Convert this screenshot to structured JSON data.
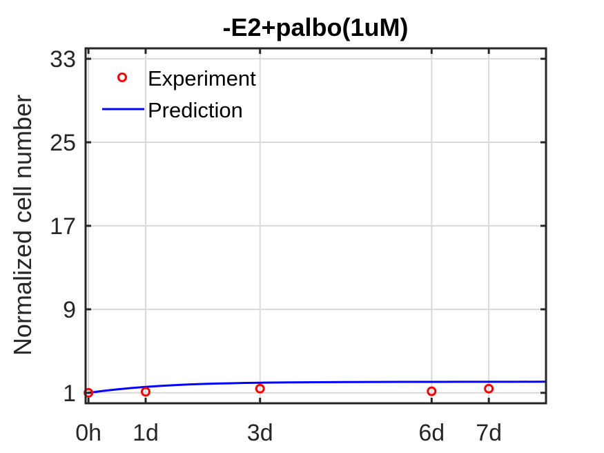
{
  "chart_data": {
    "type": "line",
    "title": "-E2+palbo(1uM)",
    "xlabel": "",
    "ylabel": "Normalized cell number",
    "x_ticks": [
      {
        "value": 0,
        "label": "0h"
      },
      {
        "value": 1,
        "label": "1d"
      },
      {
        "value": 3,
        "label": "3d"
      },
      {
        "value": 6,
        "label": "6d"
      },
      {
        "value": 7,
        "label": "7d"
      }
    ],
    "y_ticks": [
      {
        "value": 1,
        "label": "1"
      },
      {
        "value": 9,
        "label": "9"
      },
      {
        "value": 17,
        "label": "17"
      },
      {
        "value": 25,
        "label": "25"
      },
      {
        "value": 33,
        "label": "33"
      }
    ],
    "xlim": [
      -0.05,
      8
    ],
    "ylim": [
      0,
      34
    ],
    "grid": true,
    "legend_position": "top-left",
    "series": [
      {
        "name": "Experiment",
        "kind": "markers",
        "marker": "circle",
        "color": "#ff0000",
        "x": [
          0,
          1,
          3,
          6,
          7
        ],
        "y": [
          1.0,
          1.1,
          1.4,
          1.15,
          1.4
        ]
      },
      {
        "name": "Prediction",
        "kind": "line",
        "color": "#0000ff",
        "x": [
          0,
          0.25,
          0.5,
          0.75,
          1,
          1.25,
          1.5,
          1.75,
          2,
          2.25,
          2.5,
          2.75,
          3,
          3.5,
          4,
          4.5,
          5,
          5.5,
          6,
          6.5,
          7,
          7.5,
          8
        ],
        "y": [
          1.0,
          1.18,
          1.33,
          1.46,
          1.57,
          1.66,
          1.74,
          1.8,
          1.85,
          1.89,
          1.92,
          1.95,
          1.97,
          2.0,
          2.02,
          2.03,
          2.04,
          2.05,
          2.05,
          2.06,
          2.06,
          2.06,
          2.07
        ]
      }
    ]
  },
  "colors": {
    "axis": "#262626",
    "grid": "#d9d9d9",
    "experiment": "#ff0000",
    "prediction": "#0000ff"
  }
}
